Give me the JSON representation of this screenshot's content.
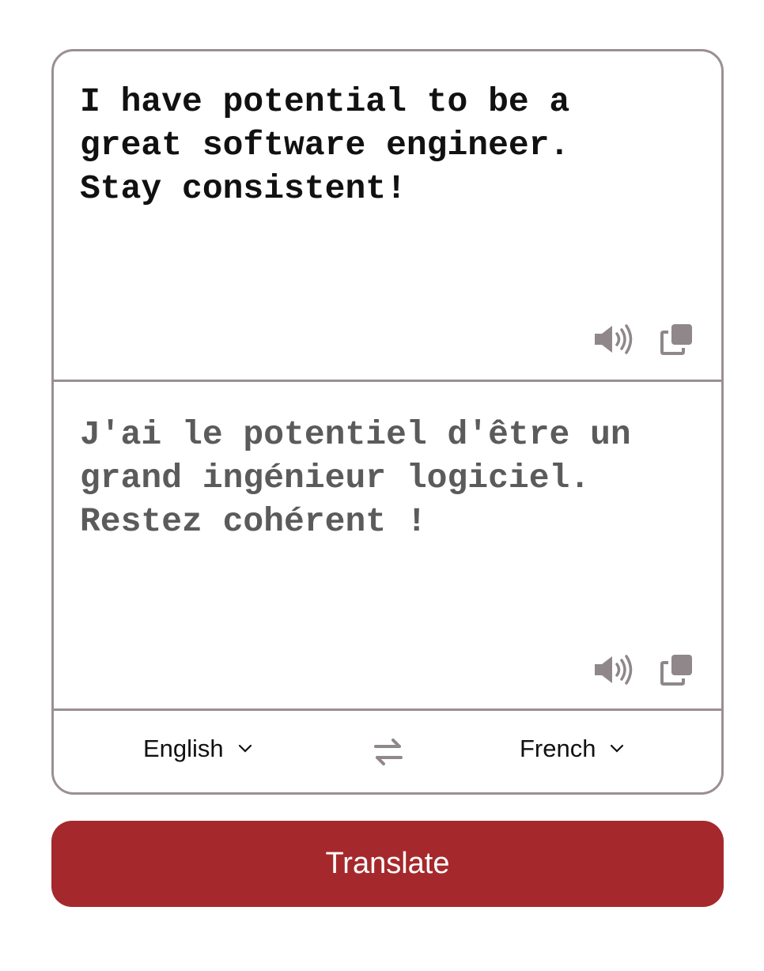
{
  "source": {
    "text": "I have potential to be a\ngreat software engineer.\nStay consistent!",
    "speak_icon": "speaker-icon",
    "copy_icon": "copy-icon"
  },
  "target": {
    "text": "J'ai le potentiel d'être un\ngrand ingénieur logiciel.\nRestez cohérent !",
    "speak_icon": "speaker-icon",
    "copy_icon": "copy-icon"
  },
  "languages": {
    "source_label": "English",
    "target_label": "French",
    "dropdown_icon": "chevron-down-icon",
    "swap_icon": "swap-arrows-icon"
  },
  "translate_button": {
    "label": "Translate"
  },
  "colors": {
    "accent": "#a5292c",
    "border": "#9b8f92",
    "icon": "#8f878a"
  }
}
